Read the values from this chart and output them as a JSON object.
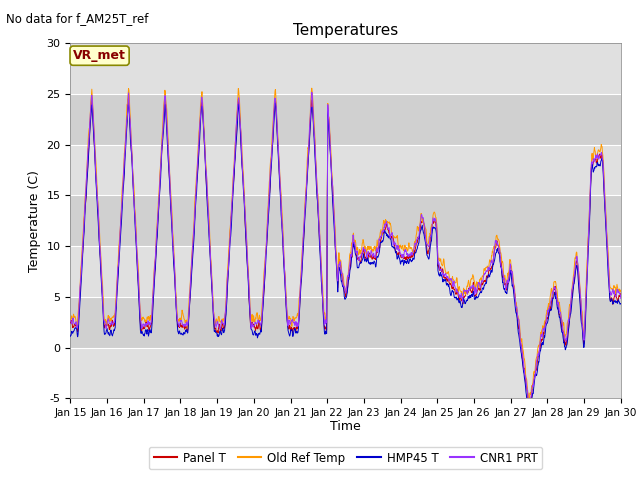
{
  "title": "Temperatures",
  "xlabel": "Time",
  "ylabel": "Temperature (C)",
  "no_data_text": "No data for f_AM25T_ref",
  "annotation_box": "VR_met",
  "ylim": [
    -5,
    30
  ],
  "xlim": [
    0,
    15
  ],
  "xtick_labels": [
    "Jan 15",
    "Jan 16",
    "Jan 17",
    "Jan 18",
    "Jan 19",
    "Jan 20",
    "Jan 21",
    "Jan 22",
    "Jan 23",
    "Jan 24",
    "Jan 25",
    "Jan 26",
    "Jan 27",
    "Jan 28",
    "Jan 29",
    "Jan 30"
  ],
  "ytick_values": [
    -5,
    0,
    5,
    10,
    15,
    20,
    25,
    30
  ],
  "line_colors": [
    "#cc0000",
    "#ff9900",
    "#0000cc",
    "#9933ff"
  ],
  "line_labels": [
    "Panel T",
    "Old Ref Temp",
    "HMP45 T",
    "CNR1 PRT"
  ],
  "band_colors": [
    "#e8e8e8",
    "#d8d8d8"
  ],
  "background_color": "#e8e8e8"
}
